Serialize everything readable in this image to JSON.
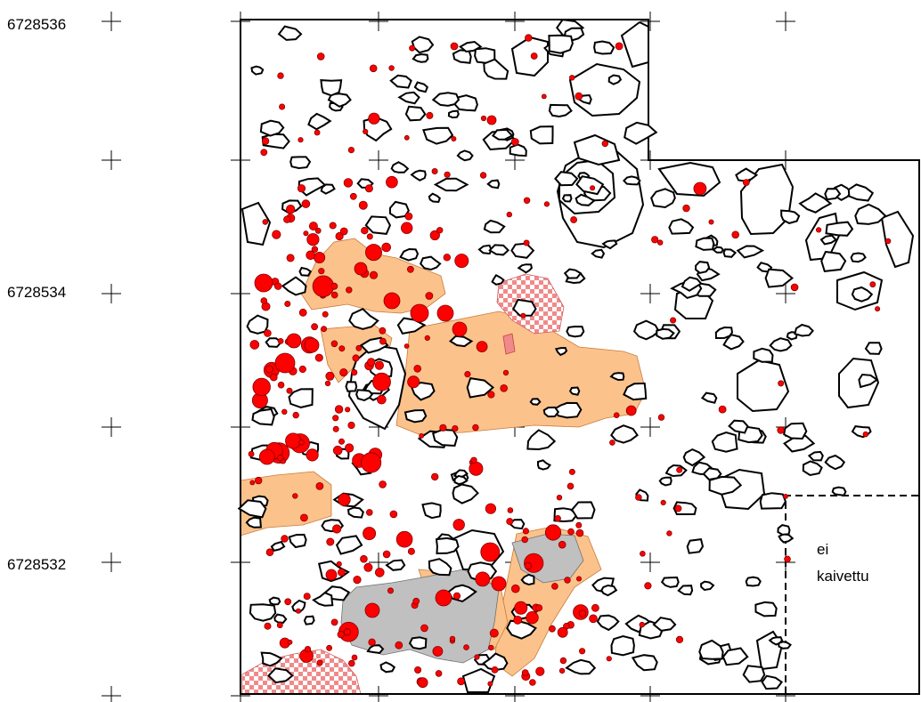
{
  "northing_labels": [
    "6728536",
    "6728534",
    "6728532"
  ],
  "unexcavated_label": [
    "ei",
    "kaivettu"
  ],
  "colors": {
    "finds": "#ff0000",
    "orange_area": "#fcc28b",
    "grey_area": "#c0c0c0",
    "checkered_area": "#f08a8a",
    "stone_outline": "#000000"
  }
}
